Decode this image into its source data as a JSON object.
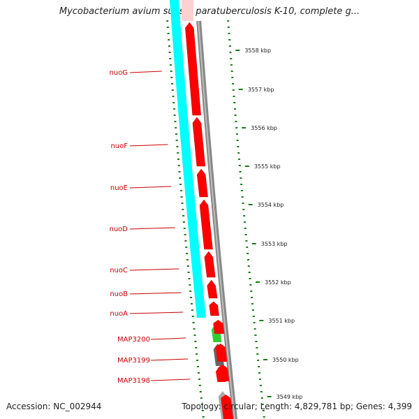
{
  "title": "Mycobacterium avium subsp. paratuberculosis K-10, complete g...",
  "footer": {
    "accession": "Accession: NC_002944",
    "summary": "Topology: circular; Length: 4,829,781 bp; Genes: 4,399"
  },
  "colors": {
    "backbone": "#888888",
    "forward_gene": "#ff0000",
    "reverse_gene": "#00ffff",
    "green_gene": "#33cc33",
    "gray_gene": "#666666",
    "ticks": "#1a7a1a",
    "label": "#cc0000"
  },
  "gene_labels": [
    "nuoG",
    "nuoF",
    "nuoE",
    "nuoD",
    "nuoC",
    "nuoB",
    "nuoA",
    "MAP3200",
    "MAP3199",
    "MAP3198"
  ],
  "scale_labels": [
    "3558 kbp",
    "3557 kbp",
    "3556 kbp",
    "3555 kbp",
    "3554 kbp",
    "3553 kbp",
    "3552 kbp",
    "3551 kbp",
    "3550 kbp",
    "3549 kbp"
  ]
}
